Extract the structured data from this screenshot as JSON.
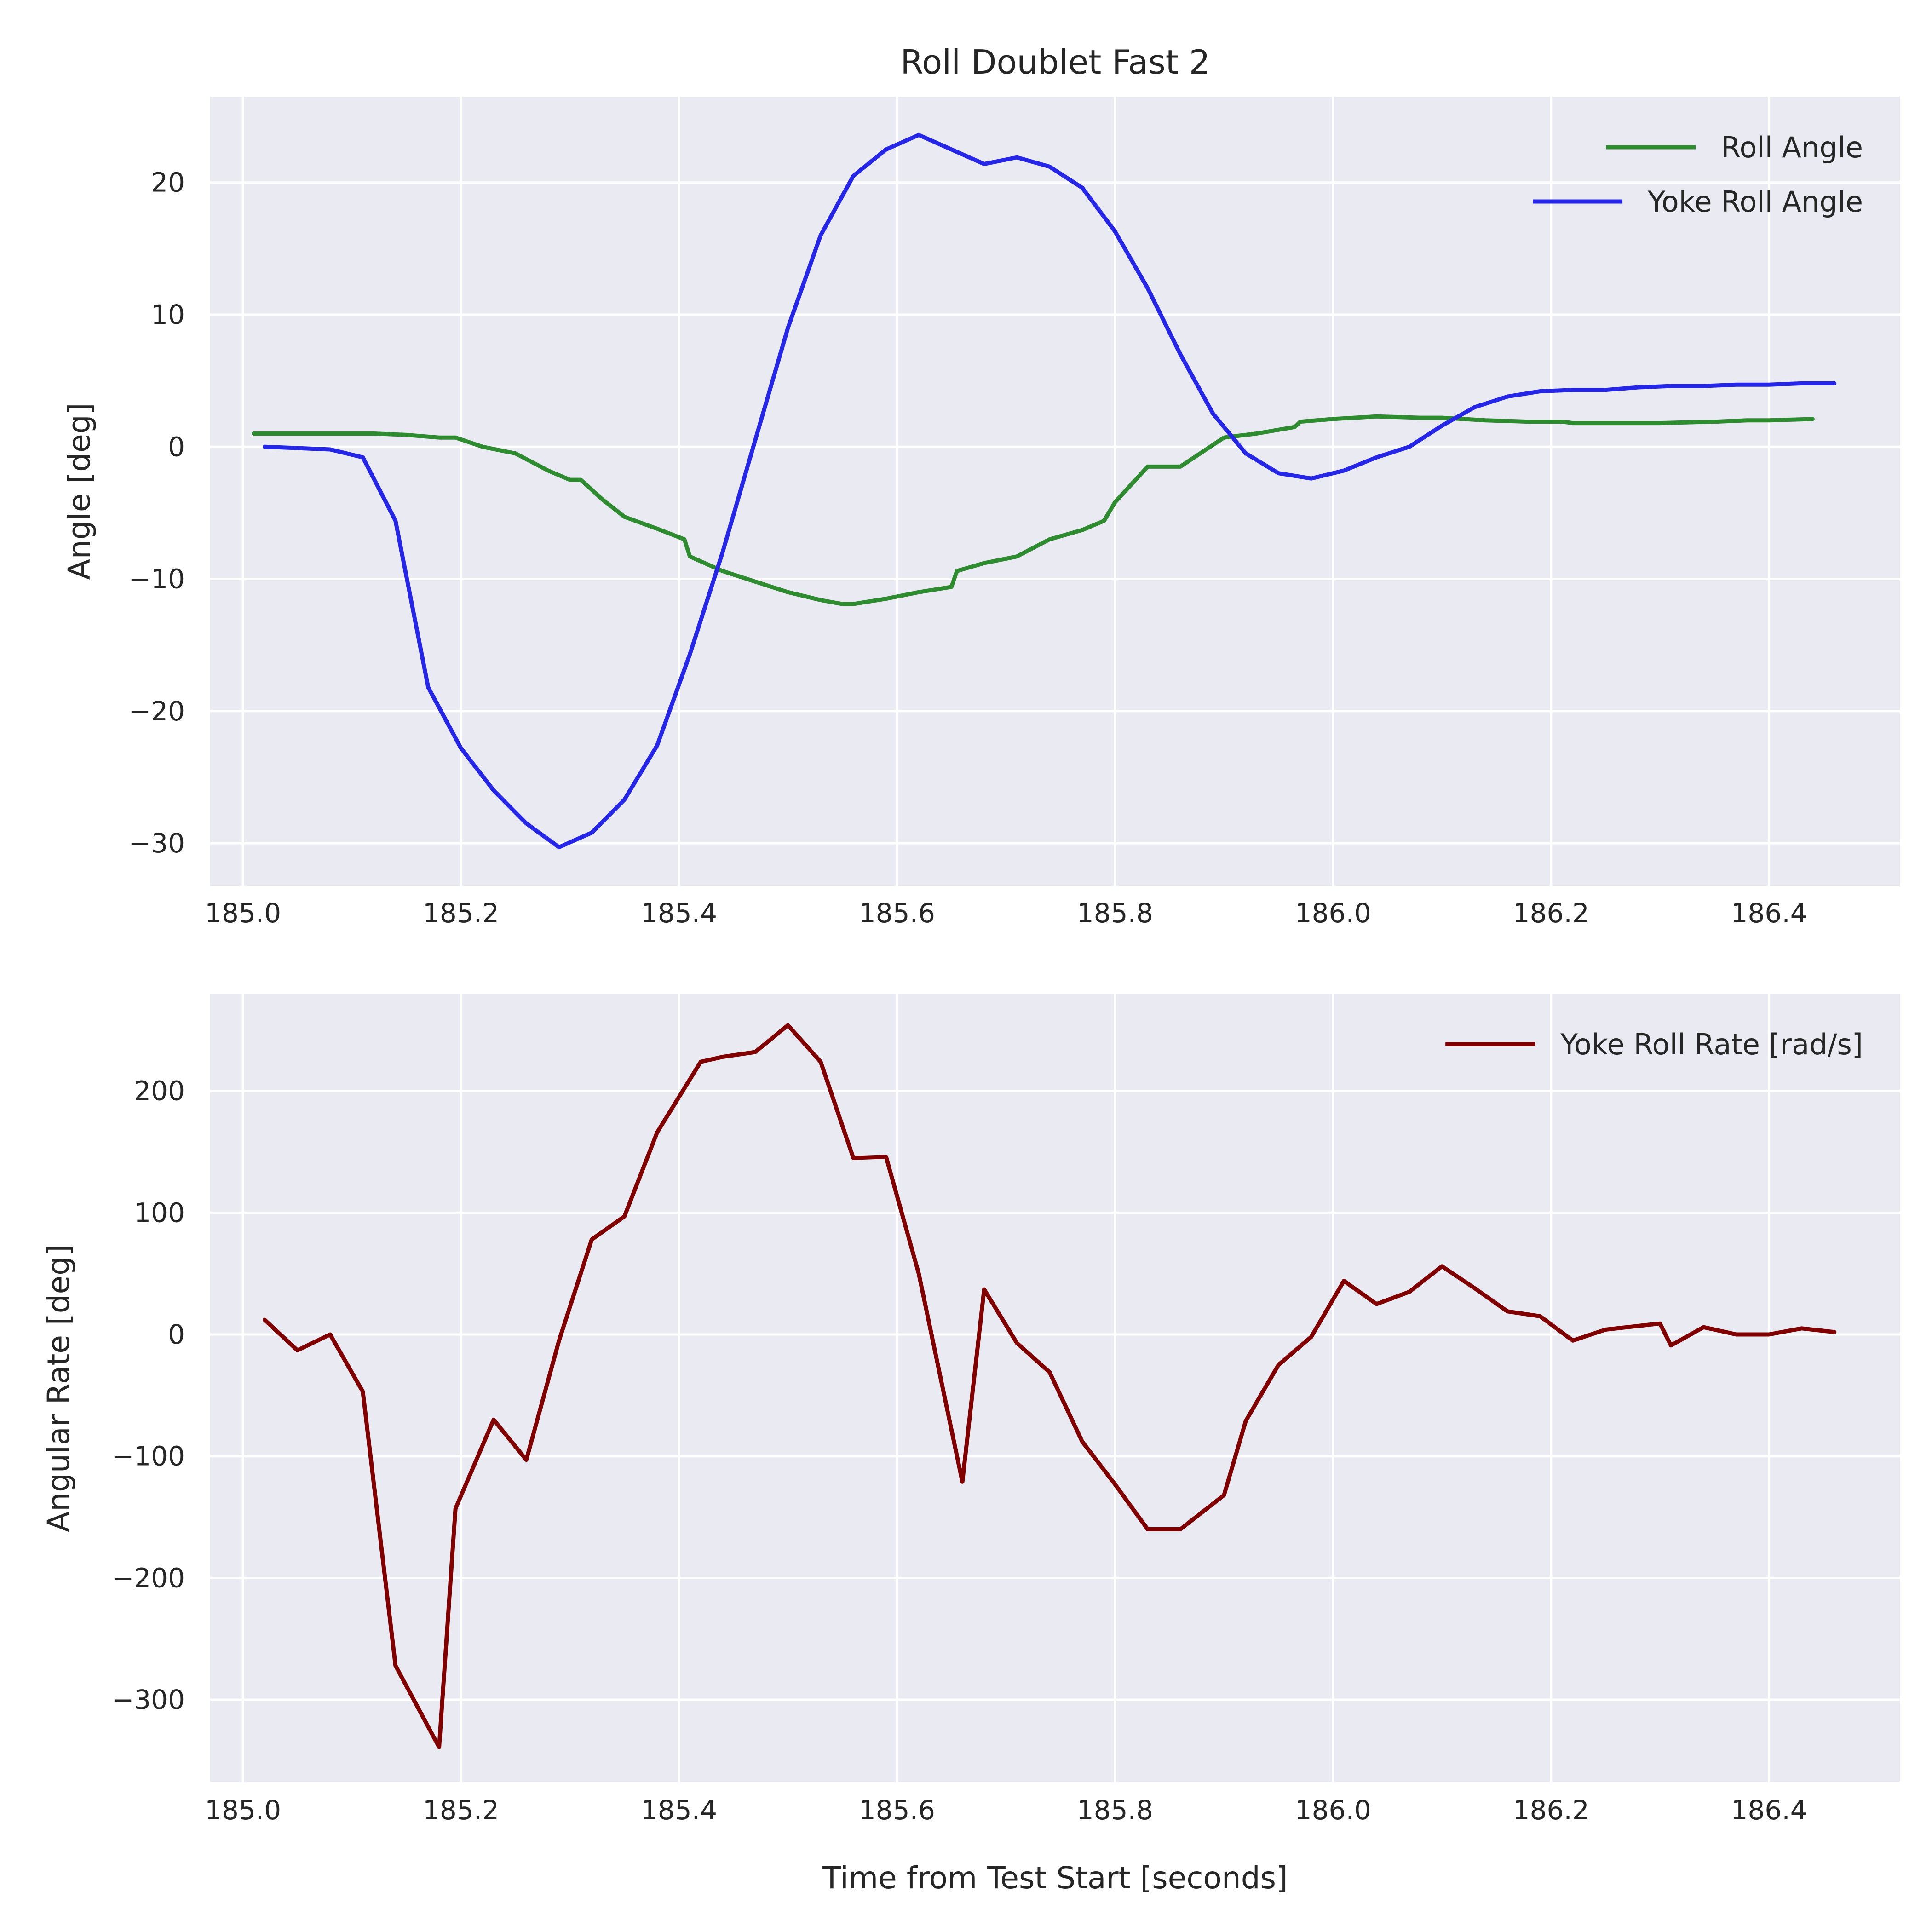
{
  "chart_data": [
    {
      "type": "line",
      "title": "Roll Doublet Fast 2",
      "xlabel": "",
      "ylabel": "Angle [deg]",
      "xlim": [
        184.97,
        186.52
      ],
      "ylim": [
        -33.2,
        26.5
      ],
      "xticks": [
        185.0,
        185.2,
        185.4,
        185.6,
        185.8,
        186.0,
        186.2,
        186.4
      ],
      "xtick_labels": [
        "185.0",
        "185.2",
        "185.4",
        "185.6",
        "185.8",
        "186.0",
        "186.2",
        "186.4"
      ],
      "yticks": [
        -30,
        -20,
        -10,
        0,
        10,
        20
      ],
      "ytick_labels": [
        "−30",
        "−20",
        "−10",
        "0",
        "10",
        "20"
      ],
      "grid": true,
      "legend_position": "top-right",
      "series": [
        {
          "name": "Roll Angle",
          "color": "#2e8b30",
          "x": [
            185.01,
            185.04,
            185.07,
            185.1,
            185.12,
            185.15,
            185.18,
            185.195,
            185.22,
            185.25,
            185.28,
            185.3,
            185.31,
            185.33,
            185.35,
            185.38,
            185.405,
            185.41,
            185.44,
            185.47,
            185.5,
            185.53,
            185.55,
            185.56,
            185.59,
            185.62,
            185.65,
            185.655,
            185.68,
            185.71,
            185.74,
            185.77,
            185.79,
            185.8,
            185.83,
            185.86,
            185.9,
            185.93,
            185.965,
            185.97,
            186.0,
            186.04,
            186.08,
            186.1,
            186.14,
            186.18,
            186.21,
            186.22,
            186.26,
            186.3,
            186.35,
            186.38,
            186.4,
            186.44
          ],
          "y": [
            1.0,
            1.0,
            1.0,
            1.0,
            1.0,
            0.9,
            0.7,
            0.7,
            0.0,
            -0.5,
            -1.8,
            -2.5,
            -2.5,
            -4.0,
            -5.3,
            -6.2,
            -7.0,
            -8.3,
            -9.4,
            -10.2,
            -11.0,
            -11.6,
            -11.9,
            -11.9,
            -11.5,
            -11.0,
            -10.6,
            -9.4,
            -8.8,
            -8.3,
            -7.0,
            -6.3,
            -5.6,
            -4.2,
            -1.5,
            -1.5,
            0.7,
            1.0,
            1.5,
            1.9,
            2.1,
            2.3,
            2.2,
            2.2,
            2.0,
            1.9,
            1.9,
            1.8,
            1.8,
            1.8,
            1.9,
            2.0,
            2.0,
            2.1
          ]
        },
        {
          "name": "Yoke Roll Angle",
          "color": "#2626e6",
          "x": [
            185.02,
            185.05,
            185.08,
            185.11,
            185.14,
            185.17,
            185.2,
            185.23,
            185.26,
            185.29,
            185.32,
            185.35,
            185.38,
            185.41,
            185.44,
            185.47,
            185.5,
            185.53,
            185.56,
            185.59,
            185.62,
            185.65,
            185.68,
            185.71,
            185.74,
            185.77,
            185.8,
            185.83,
            185.86,
            185.89,
            185.92,
            185.95,
            185.98,
            186.01,
            186.04,
            186.07,
            186.1,
            186.13,
            186.16,
            186.19,
            186.22,
            186.25,
            186.28,
            186.31,
            186.34,
            186.37,
            186.4,
            186.43,
            186.46
          ],
          "y": [
            0.0,
            -0.1,
            -0.2,
            -0.8,
            -5.6,
            -18.2,
            -22.8,
            -26.0,
            -28.5,
            -30.3,
            -29.2,
            -26.7,
            -22.6,
            -15.7,
            -8.0,
            0.5,
            9.0,
            16.0,
            20.5,
            22.5,
            23.6,
            22.5,
            21.4,
            21.9,
            21.2,
            19.6,
            16.3,
            12.0,
            7.0,
            2.5,
            -0.5,
            -2.0,
            -2.4,
            -1.8,
            -0.8,
            0.0,
            1.6,
            3.0,
            3.8,
            4.2,
            4.3,
            4.3,
            4.5,
            4.6,
            4.6,
            4.7,
            4.7,
            4.8,
            4.8
          ]
        }
      ]
    },
    {
      "type": "line",
      "title": "",
      "xlabel": "Time from Test Start [seconds]",
      "ylabel": "Angular Rate [deg]",
      "xlim": [
        184.97,
        186.52
      ],
      "ylim": [
        -368,
        280
      ],
      "xticks": [
        185.0,
        185.2,
        185.4,
        185.6,
        185.8,
        186.0,
        186.2,
        186.4
      ],
      "xtick_labels": [
        "185.0",
        "185.2",
        "185.4",
        "185.6",
        "185.8",
        "186.0",
        "186.2",
        "186.4"
      ],
      "yticks": [
        -300,
        -200,
        -100,
        0,
        100,
        200
      ],
      "ytick_labels": [
        "−300",
        "−200",
        "−100",
        "0",
        "100",
        "200"
      ],
      "grid": true,
      "legend_position": "top-right",
      "series": [
        {
          "name": "Yoke Roll Rate [rad/s]",
          "color": "#800000",
          "x": [
            185.02,
            185.05,
            185.08,
            185.11,
            185.14,
            185.18,
            185.195,
            185.23,
            185.26,
            185.29,
            185.32,
            185.35,
            185.38,
            185.42,
            185.44,
            185.47,
            185.5,
            185.53,
            185.56,
            185.59,
            185.62,
            185.66,
            185.68,
            185.71,
            185.74,
            185.77,
            185.8,
            185.83,
            185.86,
            185.9,
            185.92,
            185.95,
            185.98,
            186.01,
            186.04,
            186.07,
            186.1,
            186.13,
            186.16,
            186.19,
            186.22,
            186.25,
            186.28,
            186.3,
            186.31,
            186.34,
            186.37,
            186.4,
            186.43,
            186.46
          ],
          "y": [
            12,
            -13,
            0,
            -47,
            -272,
            -339,
            -143,
            -70,
            -103,
            -5,
            78,
            97,
            166,
            224,
            228,
            232,
            254,
            224,
            145,
            146,
            50,
            -121,
            37,
            -7,
            -31,
            -88,
            -123,
            -160,
            -160,
            -132,
            -71,
            -25,
            -2,
            44,
            25,
            35,
            56,
            38,
            19,
            15,
            -5,
            4,
            7,
            9,
            -9,
            6,
            0,
            0,
            5,
            2
          ]
        }
      ]
    }
  ]
}
